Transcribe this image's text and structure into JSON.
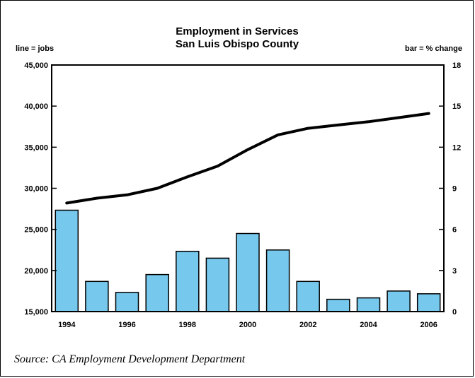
{
  "chart_data": {
    "type": "bar+line",
    "title": [
      "Employment in Services",
      "San Luis Obispo County"
    ],
    "left_axis_note": "line = jobs",
    "right_axis_note": "bar = % change",
    "x": [
      1994,
      1995,
      1996,
      1997,
      1998,
      1999,
      2000,
      2001,
      2002,
      2003,
      2004,
      2005,
      2006
    ],
    "x_tick_labels": [
      "1994",
      "1996",
      "1998",
      "2000",
      "2002",
      "2004",
      "2006"
    ],
    "x_tick_values": [
      1994,
      1996,
      1998,
      2000,
      2002,
      2004,
      2006
    ],
    "y_left": {
      "range": [
        15000,
        45000
      ],
      "ticks": [
        15000,
        20000,
        25000,
        30000,
        35000,
        40000,
        45000
      ],
      "tick_labels": [
        "15,000",
        "20,000",
        "25,000",
        "30,000",
        "35,000",
        "40,000",
        "45,000"
      ]
    },
    "y_right": {
      "range": [
        0,
        18
      ],
      "ticks": [
        0,
        3,
        6,
        9,
        12,
        15,
        18
      ],
      "tick_labels": [
        "0",
        "3",
        "6",
        "9",
        "12",
        "15",
        "18"
      ]
    },
    "series": [
      {
        "type": "line",
        "axis": "left",
        "values": [
          28200,
          28800,
          29200,
          30000,
          31400,
          32700,
          34700,
          36500,
          37300,
          37700,
          38100,
          38600,
          39100
        ],
        "color": "#000000"
      },
      {
        "type": "bar",
        "axis": "right",
        "values": [
          7.4,
          2.2,
          1.4,
          2.7,
          4.4,
          3.9,
          5.7,
          4.5,
          2.2,
          0.9,
          1.0,
          1.5,
          1.3
        ],
        "color": "#76c8ec"
      }
    ],
    "grid": false,
    "legend": "none"
  },
  "source": "Source: CA Employment Development Department"
}
